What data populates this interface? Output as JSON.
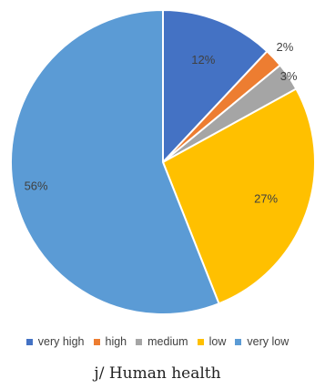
{
  "chart_data": {
    "type": "pie",
    "categories": [
      "very high",
      "high",
      "medium",
      "low",
      "very low"
    ],
    "values": [
      12,
      2,
      3,
      27,
      56
    ],
    "labels": [
      "12%",
      "2%",
      "3%",
      "27%",
      "56%"
    ],
    "colors": [
      "#4472C4",
      "#ED7D31",
      "#A5A5A5",
      "#FFC000",
      "#5B9BD5"
    ],
    "legend_position": "bottom",
    "start_angle": "top, clockwise"
  },
  "caption": "j/ Human health"
}
